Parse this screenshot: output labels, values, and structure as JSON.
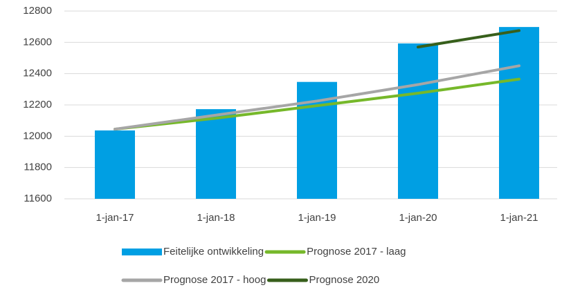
{
  "chart_data": {
    "type": "bar-line",
    "categories": [
      "1-jan-17",
      "1-jan-18",
      "1-jan-19",
      "1-jan-20",
      "1-jan-21"
    ],
    "series": [
      {
        "name": "Feitelijke ontwikkeling",
        "type": "bar",
        "color": "#009fe3",
        "values": [
          12037,
          12173,
          12347,
          12593,
          12698
        ]
      },
      {
        "name": "Prognose 2017 - laag",
        "type": "line",
        "color": "#76b82a",
        "values": [
          12045,
          12115,
          12195,
          12275,
          12365
        ]
      },
      {
        "name": "Prognose 2017 - hoog",
        "type": "line",
        "color": "#a6a6a6",
        "values": [
          12045,
          12135,
          12225,
          12330,
          12450
        ]
      },
      {
        "name": "Prognose 2020",
        "type": "line",
        "color": "#375f1b",
        "values": [
          null,
          null,
          null,
          12570,
          12675
        ]
      }
    ],
    "ylim": [
      11600,
      12800
    ],
    "yticks": [
      11600,
      11800,
      12000,
      12200,
      12400,
      12600,
      12800
    ],
    "grid": true,
    "legend": "bottom"
  }
}
